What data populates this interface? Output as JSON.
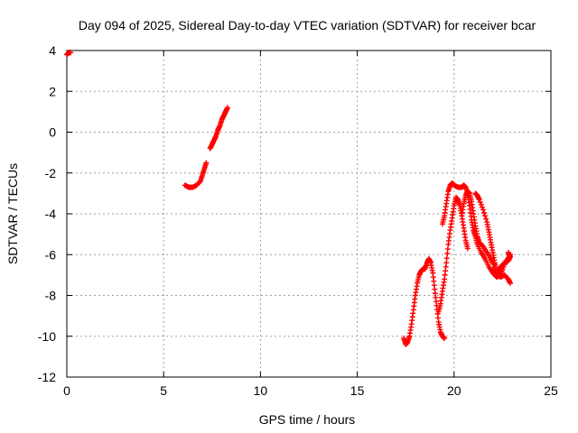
{
  "chart_data": {
    "type": "scatter",
    "title": "Day 094 of 2025, Sidereal Day-to-day VTEC variation (SDTVAR) for receiver bcar",
    "xlabel": "GPS time / hours",
    "ylabel": "SDTVAR / TECUs",
    "xlim": [
      0,
      25
    ],
    "ylim": [
      -12,
      4
    ],
    "xticks": [
      0,
      5,
      10,
      15,
      20,
      25
    ],
    "yticks": [
      -12,
      -10,
      -8,
      -6,
      -4,
      -2,
      0,
      2,
      4
    ],
    "grid": true,
    "marker": "+",
    "color": "#ff0000",
    "segments": [
      [
        [
          0.0,
          3.8
        ],
        [
          0.1,
          3.9
        ],
        [
          0.2,
          3.9
        ]
      ],
      [
        [
          6.1,
          -2.6
        ],
        [
          6.3,
          -2.7
        ],
        [
          6.5,
          -2.7
        ],
        [
          6.7,
          -2.6
        ],
        [
          6.9,
          -2.4
        ],
        [
          7.0,
          -2.1
        ],
        [
          7.1,
          -1.8
        ],
        [
          7.2,
          -1.5
        ]
      ],
      [
        [
          7.4,
          -0.8
        ],
        [
          7.5,
          -0.6
        ],
        [
          7.6,
          -0.4
        ],
        [
          7.7,
          -0.2
        ],
        [
          7.8,
          0.1
        ],
        [
          7.9,
          0.3
        ],
        [
          8.0,
          0.6
        ],
        [
          8.1,
          0.8
        ],
        [
          8.2,
          1.0
        ],
        [
          8.3,
          1.2
        ]
      ],
      [
        [
          17.4,
          -10.1
        ],
        [
          17.5,
          -10.4
        ],
        [
          17.6,
          -10.3
        ],
        [
          17.7,
          -10.0
        ],
        [
          17.8,
          -9.4
        ],
        [
          17.9,
          -8.7
        ],
        [
          18.0,
          -8.0
        ],
        [
          18.1,
          -7.4
        ],
        [
          18.2,
          -7.0
        ],
        [
          18.3,
          -6.8
        ],
        [
          18.4,
          -6.7
        ],
        [
          18.5,
          -6.7
        ],
        [
          18.6,
          -6.4
        ],
        [
          18.7,
          -6.2
        ],
        [
          18.8,
          -6.4
        ],
        [
          18.9,
          -6.9
        ],
        [
          19.0,
          -7.7
        ],
        [
          19.1,
          -8.5
        ],
        [
          19.2,
          -9.3
        ],
        [
          19.3,
          -9.8
        ],
        [
          19.4,
          -10.0
        ],
        [
          19.5,
          -10.1
        ]
      ],
      [
        [
          19.2,
          -8.8
        ],
        [
          19.3,
          -8.4
        ],
        [
          19.4,
          -7.8
        ],
        [
          19.5,
          -7.2
        ],
        [
          19.6,
          -6.4
        ],
        [
          19.7,
          -5.5
        ],
        [
          19.8,
          -4.8
        ],
        [
          19.9,
          -4.2
        ],
        [
          20.0,
          -3.6
        ],
        [
          20.1,
          -3.2
        ],
        [
          20.2,
          -3.3
        ],
        [
          20.3,
          -3.6
        ],
        [
          20.4,
          -4.1
        ],
        [
          20.5,
          -4.7
        ],
        [
          20.6,
          -5.3
        ],
        [
          20.7,
          -5.7
        ]
      ],
      [
        [
          19.4,
          -4.5
        ],
        [
          19.5,
          -4.1
        ],
        [
          19.6,
          -3.5
        ],
        [
          19.7,
          -2.9
        ],
        [
          19.8,
          -2.6
        ],
        [
          19.9,
          -2.5
        ],
        [
          20.0,
          -2.6
        ],
        [
          20.2,
          -2.7
        ],
        [
          20.4,
          -2.7
        ],
        [
          20.5,
          -2.6
        ],
        [
          20.6,
          -2.7
        ],
        [
          20.7,
          -3.0
        ],
        [
          20.8,
          -3.6
        ],
        [
          20.9,
          -4.3
        ],
        [
          21.0,
          -4.8
        ],
        [
          21.1,
          -5.1
        ],
        [
          21.2,
          -5.5
        ],
        [
          21.4,
          -5.9
        ],
        [
          21.6,
          -6.2
        ],
        [
          21.8,
          -6.6
        ],
        [
          22.0,
          -6.9
        ],
        [
          22.2,
          -7.1
        ],
        [
          22.4,
          -7.0
        ],
        [
          22.5,
          -6.7
        ],
        [
          22.7,
          -6.3
        ],
        [
          22.9,
          -6.0
        ]
      ],
      [
        [
          20.4,
          -4.1
        ],
        [
          20.5,
          -3.5
        ],
        [
          20.6,
          -3.1
        ],
        [
          20.7,
          -2.9
        ],
        [
          20.8,
          -3.0
        ],
        [
          20.9,
          -3.4
        ],
        [
          21.0,
          -4.0
        ],
        [
          21.1,
          -4.6
        ],
        [
          21.2,
          -5.1
        ],
        [
          21.3,
          -5.4
        ],
        [
          21.5,
          -5.6
        ],
        [
          21.7,
          -5.9
        ],
        [
          21.9,
          -6.2
        ],
        [
          22.0,
          -6.4
        ],
        [
          22.1,
          -6.5
        ]
      ],
      [
        [
          21.1,
          -3.0
        ],
        [
          21.2,
          -3.1
        ],
        [
          21.3,
          -3.3
        ],
        [
          21.5,
          -3.8
        ],
        [
          21.7,
          -4.4
        ],
        [
          21.8,
          -4.9
        ],
        [
          21.9,
          -5.4
        ],
        [
          22.0,
          -5.9
        ],
        [
          22.1,
          -6.4
        ],
        [
          22.2,
          -6.8
        ],
        [
          22.3,
          -7.0
        ],
        [
          22.4,
          -7.1
        ],
        [
          22.6,
          -7.0
        ],
        [
          22.8,
          -7.2
        ],
        [
          22.9,
          -7.4
        ]
      ],
      [
        [
          22.0,
          -6.7
        ],
        [
          22.2,
          -6.9
        ],
        [
          22.4,
          -6.6
        ],
        [
          22.6,
          -6.4
        ],
        [
          22.8,
          -6.3
        ],
        [
          22.9,
          -6.1
        ],
        [
          22.8,
          -5.9
        ]
      ]
    ]
  }
}
